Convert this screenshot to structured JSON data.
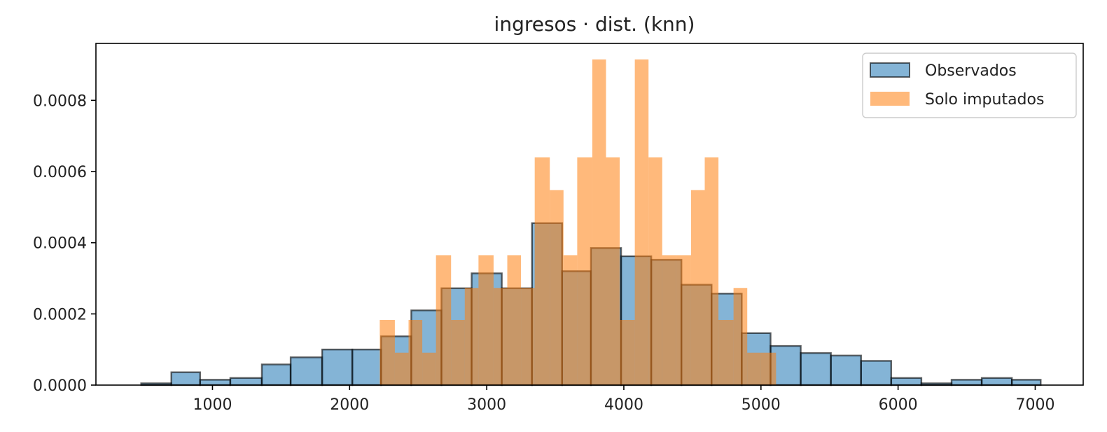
{
  "chart_data": {
    "type": "bar",
    "title": "ingresos · dist. (knn)",
    "xlabel": "",
    "ylabel": "",
    "xlim": [
      150,
      7350
    ],
    "ylim": [
      0,
      0.00096
    ],
    "xticks": [
      1000,
      2000,
      3000,
      4000,
      5000,
      6000,
      7000
    ],
    "xtick_labels": [
      "1000",
      "2000",
      "3000",
      "4000",
      "5000",
      "6000",
      "7000"
    ],
    "yticks": [
      0,
      0.0002,
      0.0004,
      0.0006,
      0.0008
    ],
    "ytick_labels": [
      "0.0000",
      "0.0002",
      "0.0004",
      "0.0006",
      "0.0008"
    ],
    "grid": false,
    "legend_position": "top-right",
    "series": [
      {
        "name": "Observados",
        "color": "#1f77b4",
        "edge_color": "#000000",
        "bins": [
          [
            480,
            700,
            5e-06
          ],
          [
            700,
            910,
            3.6e-05
          ],
          [
            910,
            1130,
            1.5e-05
          ],
          [
            1130,
            1360,
            2e-05
          ],
          [
            1360,
            1570,
            5.8e-05
          ],
          [
            1570,
            1800,
            7.8e-05
          ],
          [
            1800,
            2020,
            0.0001
          ],
          [
            2020,
            2230,
            0.0001
          ],
          [
            2230,
            2450,
            0.000137
          ],
          [
            2450,
            2670,
            0.00021
          ],
          [
            2670,
            2890,
            0.000272
          ],
          [
            2890,
            3110,
            0.000314
          ],
          [
            3110,
            3330,
            0.000272
          ],
          [
            3330,
            3550,
            0.000455
          ],
          [
            3550,
            3760,
            0.00032
          ],
          [
            3760,
            3980,
            0.000385
          ],
          [
            3980,
            4200,
            0.000362
          ],
          [
            4200,
            4420,
            0.000352
          ],
          [
            4420,
            4640,
            0.000282
          ],
          [
            4640,
            4860,
            0.000257
          ],
          [
            4860,
            5070,
            0.000146
          ],
          [
            5070,
            5290,
            0.00011
          ],
          [
            5290,
            5510,
            9e-05
          ],
          [
            5510,
            5730,
            8.3e-05
          ],
          [
            5730,
            5950,
            6.8e-05
          ],
          [
            5950,
            6170,
            2e-05
          ],
          [
            6170,
            6390,
            5e-06
          ],
          [
            6390,
            6610,
            1.5e-05
          ],
          [
            6610,
            6830,
            2e-05
          ],
          [
            6830,
            7040,
            1.5e-05
          ]
        ]
      },
      {
        "name": "Solo imputados",
        "color": "#ff7f0e",
        "bins": [
          [
            2220,
            2330,
            0.000183
          ],
          [
            2330,
            2430,
            9.1e-05
          ],
          [
            2430,
            2530,
            0.000183
          ],
          [
            2530,
            2630,
            9.1e-05
          ],
          [
            2630,
            2740,
            0.000365
          ],
          [
            2740,
            2840,
            0.000183
          ],
          [
            2840,
            2940,
            0.000273
          ],
          [
            2940,
            3050,
            0.000365
          ],
          [
            3050,
            3150,
            0.000273
          ],
          [
            3150,
            3250,
            0.000365
          ],
          [
            3250,
            3350,
            0.000273
          ],
          [
            3350,
            3460,
            0.00064
          ],
          [
            3460,
            3560,
            0.000548
          ],
          [
            3560,
            3660,
            0.000365
          ],
          [
            3660,
            3770,
            0.00064
          ],
          [
            3770,
            3870,
            0.000915
          ],
          [
            3870,
            3970,
            0.00064
          ],
          [
            3970,
            4080,
            0.000183
          ],
          [
            4080,
            4180,
            0.000915
          ],
          [
            4180,
            4280,
            0.00064
          ],
          [
            4280,
            4380,
            0.000365
          ],
          [
            4380,
            4490,
            0.000365
          ],
          [
            4490,
            4590,
            0.000548
          ],
          [
            4590,
            4690,
            0.00064
          ],
          [
            4690,
            4800,
            0.000183
          ],
          [
            4800,
            4900,
            0.000273
          ],
          [
            4900,
            5000,
            9.1e-05
          ],
          [
            5000,
            5110,
            9.1e-05
          ]
        ]
      }
    ]
  }
}
